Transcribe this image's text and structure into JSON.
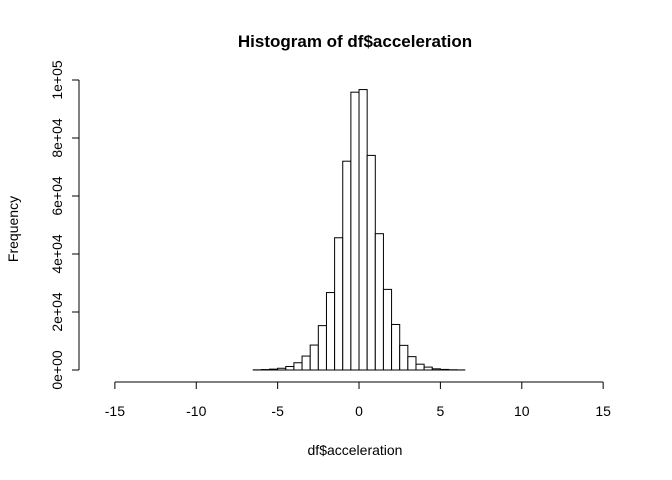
{
  "chart_data": {
    "type": "bar",
    "title": "Histogram of df$acceleration",
    "xlabel": "df$acceleration",
    "ylabel": "Frequency",
    "xlim": [
      -16,
      15.5
    ],
    "ylim": [
      0,
      100000
    ],
    "x_ticks": [
      -15,
      -10,
      -5,
      0,
      5,
      10,
      15
    ],
    "x_tick_labels": [
      "-15",
      "-10",
      "-5",
      "0",
      "5",
      "10",
      "15"
    ],
    "y_ticks": [
      0,
      20000,
      40000,
      60000,
      80000,
      100000
    ],
    "y_tick_labels": [
      "0e+00",
      "2e+04",
      "4e+04",
      "6e+04",
      "8e+04",
      "1e+05"
    ],
    "bin_width": 0.5,
    "bins_start": [
      -16,
      -15.5,
      -15,
      -14.5,
      -14,
      -13.5,
      -13,
      -12.5,
      -12,
      -11.5,
      -11,
      -10.5,
      -10,
      -9.5,
      -9,
      -8.5,
      -8,
      -7.5,
      -7,
      -6.5,
      -6,
      -5.5,
      -5,
      -4.5,
      -4,
      -3.5,
      -3,
      -2.5,
      -2,
      -1.5,
      -1,
      -0.5,
      0,
      0.5,
      1,
      1.5,
      2,
      2.5,
      3,
      3.5,
      4,
      4.5,
      5,
      5.5,
      6,
      6.5,
      7,
      7.5,
      8,
      8.5,
      9,
      9.5,
      10,
      10.5,
      11,
      11.5,
      12,
      12.5,
      13,
      13.5,
      14,
      14.5,
      15
    ],
    "values": [
      0,
      0,
      0,
      0,
      0,
      0,
      0,
      0,
      0,
      0,
      0,
      0,
      0,
      0,
      0,
      0,
      0,
      0,
      0,
      50,
      150,
      300,
      600,
      1200,
      2500,
      4800,
      8600,
      15300,
      26700,
      45600,
      72000,
      95800,
      96700,
      74000,
      47000,
      27800,
      15700,
      8500,
      4600,
      2000,
      1000,
      400,
      200,
      80,
      30,
      0,
      0,
      0,
      0,
      0,
      0,
      0,
      0,
      0,
      0,
      0,
      0,
      0,
      0,
      0,
      0,
      0,
      0
    ],
    "grid": false,
    "legend": "none"
  }
}
